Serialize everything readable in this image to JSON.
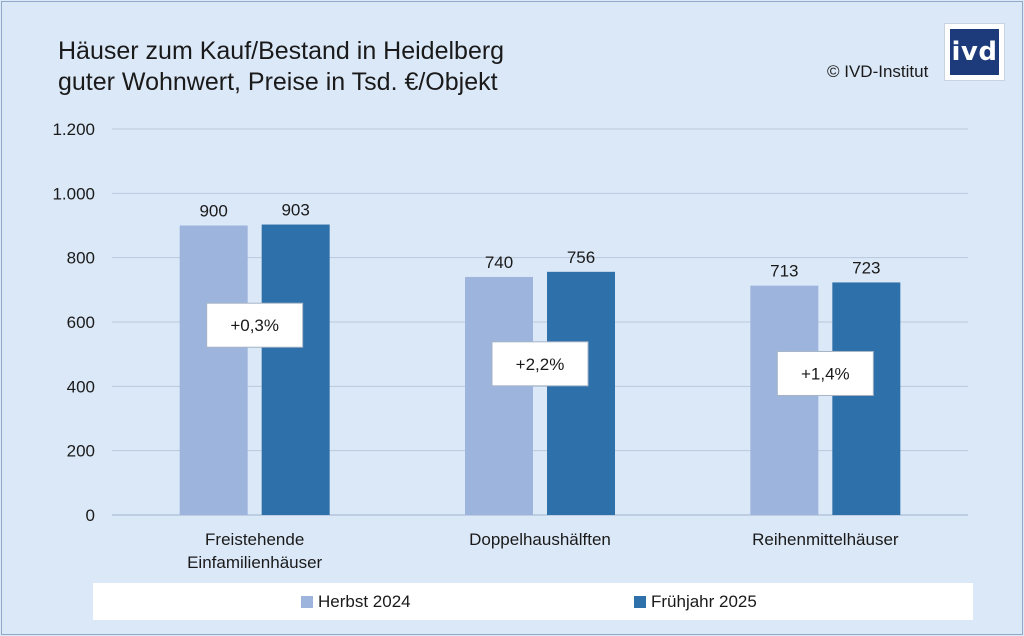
{
  "title_line1": "Häuser zum Kauf/Bestand in Heidelberg",
  "title_line2": "guter Wohnwert, Preise in Tsd. €/Objekt",
  "copyright": "© IVD-Institut",
  "logo_text": "ivd",
  "colors": {
    "herbst": "#9db5dc",
    "fruehjahr": "#2e70a9",
    "grid": "#b9c9dc"
  },
  "chart_data": {
    "type": "bar",
    "title": "Häuser zum Kauf/Bestand in Heidelberg guter Wohnwert, Preise in Tsd. €/Objekt",
    "categories": [
      [
        "Freistehende",
        "Einfamilienhäuser"
      ],
      [
        "Doppelhaushälften"
      ],
      [
        "Reihenmittelhäuser"
      ]
    ],
    "series": [
      {
        "name": "Herbst 2024",
        "values": [
          900,
          740,
          713
        ],
        "labels": [
          "900",
          "740",
          "713"
        ]
      },
      {
        "name": "Frühjahr 2025",
        "values": [
          903,
          756,
          723
        ],
        "labels": [
          "903",
          "756",
          "723"
        ]
      }
    ],
    "change_labels": [
      "+0,3%",
      "+2,2%",
      "+1,4%"
    ],
    "change_label_values": [
      590,
      470,
      440
    ],
    "ylim": [
      0,
      1200
    ],
    "yticks": [
      0,
      200,
      400,
      600,
      800,
      1000,
      1200
    ],
    "ytick_labels": [
      "0",
      "200",
      "400",
      "600",
      "800",
      "1.000",
      "1.200"
    ],
    "grid": true,
    "legend": "bottom"
  }
}
